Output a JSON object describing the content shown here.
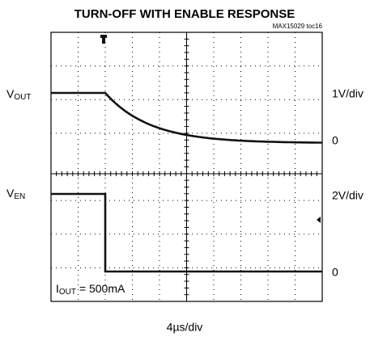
{
  "title": "TURN-OFF WITH ENABLE RESPONSE",
  "figure_id": "MAX15029 toc16",
  "channels": [
    {
      "symbol": "V",
      "subscript": "OUT",
      "scale": "1V/div",
      "zero": "0"
    },
    {
      "symbol": "V",
      "subscript": "EN",
      "scale": "2V/div",
      "zero": "0"
    }
  ],
  "condition": {
    "symbol": "I",
    "subscript": "OUT",
    "text": " = 500mA"
  },
  "time_scale": "4µs/div"
}
